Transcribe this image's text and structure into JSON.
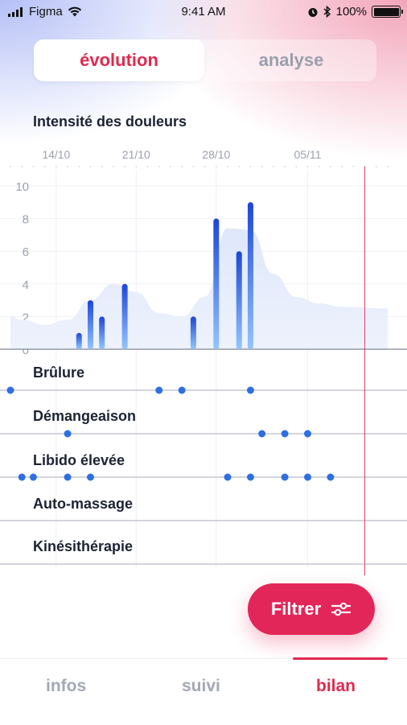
{
  "status_bar": {
    "carrier": "Figma",
    "time": "9:41 AM",
    "battery": "100%"
  },
  "segmented": {
    "tabs": [
      "évolution",
      "analyse"
    ],
    "active": "évolution"
  },
  "chart_title": "Intensité des douleurs",
  "colors": {
    "accent": "#e0294f",
    "fab": "#e3265a",
    "bar_top": "#1f4fd8",
    "bar_bottom": "#8cc3ff",
    "dot": "#2f6fe0"
  },
  "chart_data": {
    "type": "bar",
    "title": "Intensité des douleurs",
    "x_ticks": [
      "14/10",
      "21/10",
      "28/10",
      "05/11"
    ],
    "x_range": [
      "2019-10-10",
      "2019-11-12"
    ],
    "today": "2019-11-10",
    "ylim": [
      0,
      10
    ],
    "y_ticks": [
      0,
      2,
      4,
      6,
      8,
      10
    ],
    "bars": [
      {
        "date": "2019-10-16",
        "value": 1
      },
      {
        "date": "2019-10-17",
        "value": 3
      },
      {
        "date": "2019-10-18",
        "value": 2
      },
      {
        "date": "2019-10-20",
        "value": 4
      },
      {
        "date": "2019-10-26",
        "value": 2
      },
      {
        "date": "2019-10-28",
        "value": 8
      },
      {
        "date": "2019-10-30",
        "value": 6
      },
      {
        "date": "2019-10-31",
        "value": 9
      }
    ],
    "trend": [
      {
        "date": "2019-10-10",
        "value": 2
      },
      {
        "date": "2019-10-11",
        "value": 1.8
      },
      {
        "date": "2019-10-13",
        "value": 1.5
      },
      {
        "date": "2019-10-15",
        "value": 1.8
      },
      {
        "date": "2019-10-17",
        "value": 3
      },
      {
        "date": "2019-10-19",
        "value": 4
      },
      {
        "date": "2019-10-21",
        "value": 3.5
      },
      {
        "date": "2019-10-23",
        "value": 2.2
      },
      {
        "date": "2019-10-25",
        "value": 2
      },
      {
        "date": "2019-10-27",
        "value": 3.2
      },
      {
        "date": "2019-10-29",
        "value": 7.4
      },
      {
        "date": "2019-10-31",
        "value": 7.3
      },
      {
        "date": "2019-11-02",
        "value": 4.6
      },
      {
        "date": "2019-11-04",
        "value": 3.2
      },
      {
        "date": "2019-11-06",
        "value": 2.8
      },
      {
        "date": "2019-11-08",
        "value": 2.6
      },
      {
        "date": "2019-11-12",
        "value": 2.5
      }
    ],
    "symptoms": [
      {
        "label": "Brûlure",
        "dates": [
          "2019-10-10",
          "2019-10-23",
          "2019-10-25",
          "2019-10-31"
        ]
      },
      {
        "label": "Démangeaison",
        "dates": [
          "2019-10-15",
          "2019-11-01",
          "2019-11-03",
          "2019-11-05"
        ]
      },
      {
        "label": "Libido élevée",
        "dates": [
          "2019-10-11",
          "2019-10-12",
          "2019-10-15",
          "2019-10-17",
          "2019-10-29",
          "2019-10-31",
          "2019-11-03",
          "2019-11-05",
          "2019-11-07"
        ]
      },
      {
        "label": "Auto-massage",
        "dates": []
      },
      {
        "label": "Kinésithérapie",
        "dates": []
      }
    ]
  },
  "fab": {
    "label": "Filtrer",
    "icon": "sliders-icon"
  },
  "tabbar": {
    "tabs": [
      "infos",
      "suivi",
      "bilan"
    ],
    "active": "bilan"
  }
}
